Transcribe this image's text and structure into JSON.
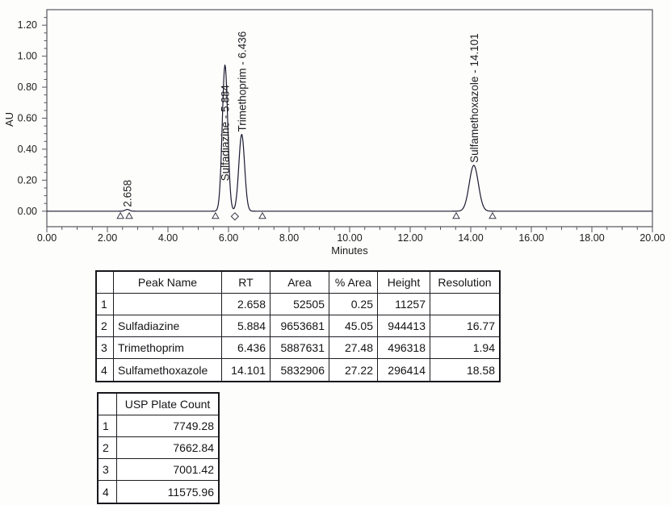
{
  "colors": {
    "trace": "#1a1a32",
    "axis": "#55555f",
    "tick_text": "#1c1c1e",
    "peak_label_text": "#1d1d22",
    "marker_stroke": "#3a3a48",
    "table_text": "#141417"
  },
  "chart_data": {
    "type": "line",
    "title": "",
    "xlabel": "Minutes",
    "ylabel": "AU",
    "xlim": [
      0,
      20
    ],
    "ylim": [
      -0.1,
      1.3
    ],
    "grid": false,
    "x_tick_values": [
      0,
      2,
      4,
      6,
      8,
      10,
      12,
      14,
      16,
      18,
      20
    ],
    "x_tick_labels": [
      "0.00",
      "2.00",
      "4.00",
      "6.00",
      "8.00",
      "10.00",
      "12.00",
      "14.00",
      "16.00",
      "18.00",
      "20.00"
    ],
    "x_minor_step": 0.5,
    "y_tick_values": [
      0,
      0.2,
      0.4,
      0.6,
      0.8,
      1.0,
      1.2
    ],
    "y_tick_labels": [
      "0.00",
      "0.20",
      "0.40",
      "0.60",
      "0.80",
      "1.00",
      "1.20"
    ],
    "y_minor_step": 0.05,
    "peaks": [
      {
        "name": "",
        "rt": 2.658,
        "height_au": 0.0113,
        "sigma": 0.07,
        "label": "2.658"
      },
      {
        "name": "Sulfadiazine",
        "rt": 5.884,
        "height_au": 0.944,
        "sigma": 0.09,
        "label": "Sulfadiazine - 5.884"
      },
      {
        "name": "Trimethoprim",
        "rt": 6.436,
        "height_au": 0.496,
        "sigma": 0.095,
        "label": "Trimethoprim - 6.436"
      },
      {
        "name": "Sulfamethoxazole",
        "rt": 14.101,
        "height_au": 0.296,
        "sigma": 0.15,
        "label": "Sulfamethoxazole - 14.101"
      }
    ],
    "integration_markers": [
      {
        "shape": "triangle",
        "t": 2.43
      },
      {
        "shape": "triangle",
        "t": 2.72
      },
      {
        "shape": "triangle",
        "t": 5.57
      },
      {
        "shape": "diamond",
        "t": 6.21
      },
      {
        "shape": "triangle",
        "t": 7.12
      },
      {
        "shape": "triangle",
        "t": 13.52
      },
      {
        "shape": "triangle",
        "t": 14.72
      }
    ]
  },
  "peak_table": {
    "headers": [
      "",
      "Peak Name",
      "RT",
      "Area",
      "% Area",
      "Height",
      "Resolution"
    ],
    "rows": [
      [
        "1",
        "",
        "2.658",
        "52505",
        "0.25",
        "11257",
        ""
      ],
      [
        "2",
        "Sulfadiazine",
        "5.884",
        "9653681",
        "45.05",
        "944413",
        "16.77"
      ],
      [
        "3",
        "Trimethoprim",
        "6.436",
        "5887631",
        "27.48",
        "496318",
        "1.94"
      ],
      [
        "4",
        "Sulfamethoxazole",
        "14.101",
        "5832906",
        "27.22",
        "296414",
        "18.58"
      ]
    ]
  },
  "plate_table": {
    "headers": [
      "",
      "USP Plate Count"
    ],
    "rows": [
      [
        "1",
        "7749.28"
      ],
      [
        "2",
        "7662.84"
      ],
      [
        "3",
        "7001.42"
      ],
      [
        "4",
        "11575.96"
      ]
    ]
  }
}
